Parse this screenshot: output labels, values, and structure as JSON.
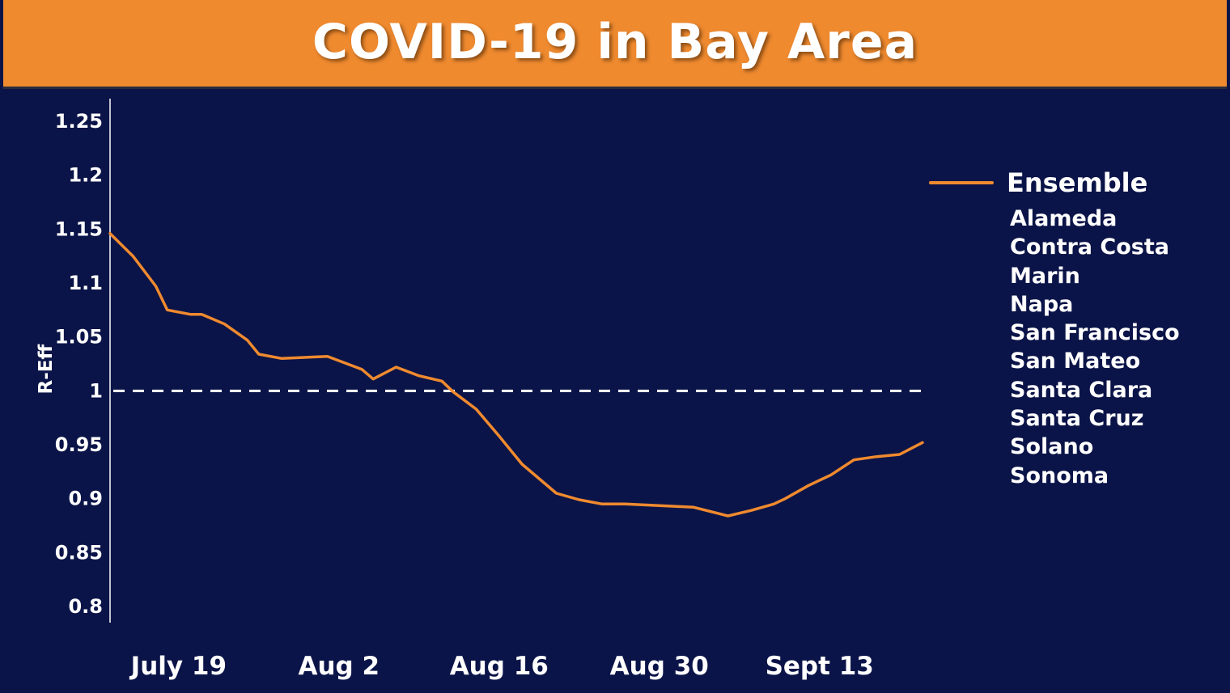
{
  "header": {
    "title": "COVID-19 in Bay Area"
  },
  "colors": {
    "header_bg": "#ef8a2f",
    "background": "#0b1448",
    "line": "#ef8a2f",
    "text": "#ffffff"
  },
  "legend": {
    "series_label": "Ensemble",
    "counties": [
      "Alameda",
      "Contra Costa",
      "Marin",
      "Napa",
      "San Francisco",
      "San Mateo",
      "Santa Clara",
      "Santa Cruz",
      "Solano",
      "Sonoma"
    ]
  },
  "chart_data": {
    "type": "line",
    "title": "COVID-19 in Bay Area",
    "ylabel": "R-Eff",
    "xlabel": "",
    "ylim": [
      0.8,
      1.25
    ],
    "yticks": [
      "1.25",
      "1.2",
      "1.15",
      "1.1",
      "1.05",
      "1",
      "0.95",
      "0.9",
      "0.85",
      "0.8"
    ],
    "xticks": [
      "July 19",
      "Aug 2",
      "Aug 16",
      "Aug 30",
      "Sept 13"
    ],
    "xlim": [
      "2020-07-13",
      "2020-09-22"
    ],
    "xtick_dates": [
      "2020-07-19",
      "2020-08-02",
      "2020-08-16",
      "2020-08-30",
      "2020-09-13"
    ],
    "reference_line": {
      "y": 1,
      "style": "dashed",
      "color": "#ffffff"
    },
    "grid": false,
    "legend_position": "right",
    "series": [
      {
        "name": "Ensemble",
        "color": "#ef8a2f",
        "x": [
          "2020-07-13",
          "2020-07-15",
          "2020-07-17",
          "2020-07-18",
          "2020-07-20",
          "2020-07-21",
          "2020-07-23",
          "2020-07-25",
          "2020-07-26",
          "2020-07-28",
          "2020-08-01",
          "2020-08-04",
          "2020-08-05",
          "2020-08-07",
          "2020-08-09",
          "2020-08-11",
          "2020-08-12",
          "2020-08-14",
          "2020-08-16",
          "2020-08-18",
          "2020-08-21",
          "2020-08-23",
          "2020-08-25",
          "2020-08-27",
          "2020-09-02",
          "2020-09-05",
          "2020-09-07",
          "2020-09-09",
          "2020-09-10",
          "2020-09-12",
          "2020-09-14",
          "2020-09-16",
          "2020-09-18",
          "2020-09-20",
          "2020-09-22"
        ],
        "values": [
          1.146,
          1.125,
          1.097,
          1.075,
          1.071,
          1.071,
          1.062,
          1.047,
          1.034,
          1.03,
          1.032,
          1.02,
          1.011,
          1.022,
          1.014,
          1.009,
          0.999,
          0.983,
          0.958,
          0.932,
          0.905,
          0.899,
          0.895,
          0.895,
          0.892,
          0.884,
          0.889,
          0.895,
          0.9,
          0.912,
          0.922,
          0.936,
          0.939,
          0.941,
          0.952
        ]
      }
    ]
  }
}
